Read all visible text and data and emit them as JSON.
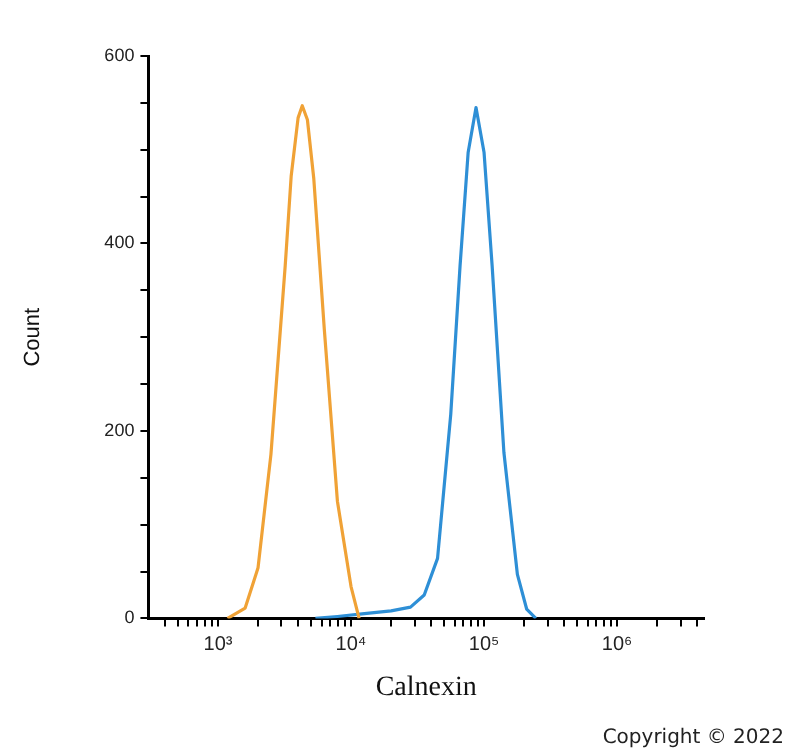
{
  "chart_data": {
    "type": "line",
    "xlabel": "Calnexin",
    "ylabel": "Count",
    "log": "x",
    "grid": false,
    "legend": false,
    "xlim": [
      300,
      4500000
    ],
    "xticks": [
      {
        "value": 400,
        "label": null
      },
      {
        "value": 500,
        "label": null
      },
      {
        "value": 600,
        "label": null
      },
      {
        "value": 700,
        "label": null
      },
      {
        "value": 800,
        "label": null
      },
      {
        "value": 900,
        "label": null
      },
      {
        "value": 1000,
        "label": "10³"
      },
      {
        "value": 2000,
        "label": null
      },
      {
        "value": 3000,
        "label": null
      },
      {
        "value": 4000,
        "label": null
      },
      {
        "value": 5000,
        "label": null
      },
      {
        "value": 6000,
        "label": null
      },
      {
        "value": 7000,
        "label": null
      },
      {
        "value": 8000,
        "label": null
      },
      {
        "value": 9000,
        "label": null
      },
      {
        "value": 10000,
        "label": "10⁴"
      },
      {
        "value": 20000,
        "label": null
      },
      {
        "value": 30000,
        "label": null
      },
      {
        "value": 40000,
        "label": null
      },
      {
        "value": 50000,
        "label": null
      },
      {
        "value": 60000,
        "label": null
      },
      {
        "value": 70000,
        "label": null
      },
      {
        "value": 80000,
        "label": null
      },
      {
        "value": 90000,
        "label": null
      },
      {
        "value": 100000,
        "label": "10⁵"
      },
      {
        "value": 200000,
        "label": null
      },
      {
        "value": 300000,
        "label": null
      },
      {
        "value": 400000,
        "label": null
      },
      {
        "value": 500000,
        "label": null
      },
      {
        "value": 600000,
        "label": null
      },
      {
        "value": 700000,
        "label": null
      },
      {
        "value": 800000,
        "label": null
      },
      {
        "value": 900000,
        "label": null
      },
      {
        "value": 1000000,
        "label": "10⁶"
      },
      {
        "value": 2000000,
        "label": null
      },
      {
        "value": 3000000,
        "label": null
      },
      {
        "value": 4000000,
        "label": null
      }
    ],
    "ylim": [
      0,
      600
    ],
    "yticks": [
      0,
      {
        "value": 50,
        "label": null
      },
      {
        "value": 100,
        "label": null
      },
      {
        "value": 150,
        "label": null
      },
      200,
      {
        "value": 250,
        "label": null
      },
      {
        "value": 300,
        "label": null
      },
      {
        "value": 350,
        "label": null
      },
      400,
      {
        "value": 450,
        "label": null
      },
      {
        "value": 500,
        "label": null
      },
      {
        "value": 550,
        "label": null
      },
      600
    ],
    "series": [
      {
        "color": "#f0a236",
        "x": [
          1180,
          1600,
          2000,
          2500,
          3200,
          3550,
          4000,
          4300,
          4700,
          5250,
          6300,
          7900,
          10000,
          11500
        ],
        "values": [
          0,
          11,
          54,
          175,
          376,
          472,
          534,
          547,
          532,
          469,
          308,
          125,
          34,
          0
        ]
      },
      {
        "color": "#2e8fd6",
        "x": [
          5400,
          7900,
          12600,
          20000,
          28000,
          35500,
          44700,
          56200,
          66000,
          75900,
          87000,
          100000,
          115000,
          141000,
          178000,
          209000,
          245000
        ],
        "values": [
          0,
          2,
          5,
          8,
          12,
          25,
          64,
          218,
          376,
          497,
          545,
          497,
          376,
          177,
          47,
          10,
          0
        ]
      }
    ],
    "annotations": [
      "Copyright © 2022"
    ]
  }
}
